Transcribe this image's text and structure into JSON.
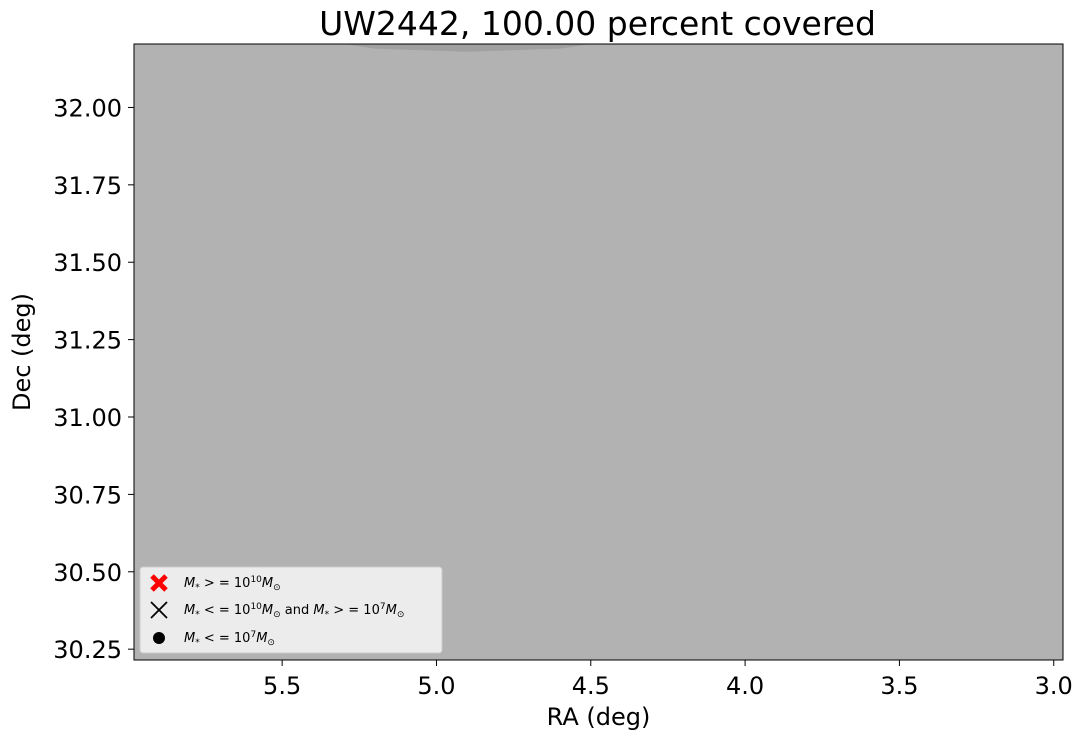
{
  "chart_data": {
    "type": "scatter",
    "title": "UW2442, 100.00 percent covered",
    "xlabel": "RA (deg)",
    "ylabel": "Dec (deg)",
    "xlim": [
      5.98,
      2.97
    ],
    "ylim": [
      30.215,
      32.205
    ],
    "x_ticks": [
      5.5,
      5.0,
      4.5,
      4.0,
      3.5,
      3.0
    ],
    "x_tick_labels": [
      "5.5",
      "5.0",
      "4.5",
      "4.0",
      "3.5",
      "3.0"
    ],
    "y_ticks": [
      30.25,
      30.5,
      30.75,
      31.0,
      31.25,
      31.5,
      31.75,
      32.0
    ],
    "y_tick_labels": [
      "30.25",
      "30.50",
      "30.75",
      "31.00",
      "31.25",
      "31.50",
      "31.75",
      "32.00"
    ],
    "coverage_region": {
      "fill_color": "#b2b2b2",
      "description": "Uniform gray coverage fills the entire field",
      "overlap_boundary": [
        [
          5.3,
          32.205
        ],
        [
          5.2,
          32.19
        ],
        [
          4.9,
          32.18
        ],
        [
          4.6,
          32.19
        ],
        [
          4.5,
          32.205
        ]
      ],
      "overlap_color": "#a0a0a0"
    },
    "series": [],
    "legend": {
      "placement": "lower-left",
      "entries": [
        {
          "marker": "red-thick-x",
          "color": "#ff0000",
          "label_main": "M",
          "label_sub": "*",
          "label_rest": " > = 10",
          "label_sup": "10",
          "label_tail": "M",
          "label_tail_sub": "⊙"
        },
        {
          "marker": "thin-x",
          "color": "#000000",
          "label_main": "M",
          "label_sub": "*",
          "label_rest": " < = 10",
          "label_sup": "10",
          "label_tail": "M",
          "label_tail_sub": "⊙",
          "label_and": " and ",
          "label2_main": "M",
          "label2_sub": "*",
          "label2_rest": " > = 10",
          "label2_sup": "7",
          "label2_tail": "M",
          "label2_tail_sub": "⊙"
        },
        {
          "marker": "dot",
          "color": "#000000",
          "label_main": "M",
          "label_sub": "*",
          "label_rest": " < = 10",
          "label_sup": "7",
          "label_tail": "M",
          "label_tail_sub": "⊙"
        }
      ]
    }
  }
}
